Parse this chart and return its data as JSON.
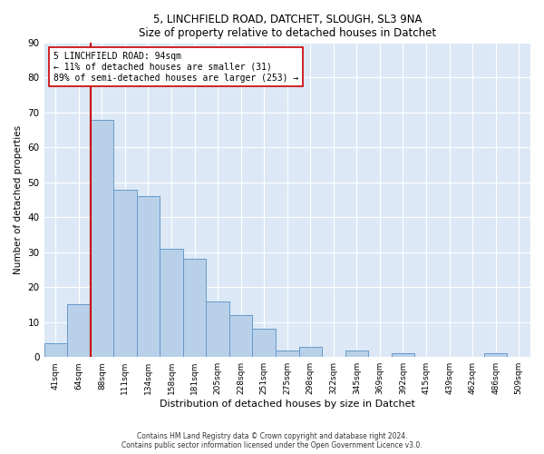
{
  "title1": "5, LINCHFIELD ROAD, DATCHET, SLOUGH, SL3 9NA",
  "title2": "Size of property relative to detached houses in Datchet",
  "xlabel": "Distribution of detached houses by size in Datchet",
  "ylabel": "Number of detached properties",
  "categories": [
    "41sqm",
    "64sqm",
    "88sqm",
    "111sqm",
    "134sqm",
    "158sqm",
    "181sqm",
    "205sqm",
    "228sqm",
    "251sqm",
    "275sqm",
    "298sqm",
    "322sqm",
    "345sqm",
    "369sqm",
    "392sqm",
    "415sqm",
    "439sqm",
    "462sqm",
    "486sqm",
    "509sqm"
  ],
  "values": [
    4,
    15,
    68,
    48,
    46,
    31,
    28,
    16,
    12,
    8,
    2,
    3,
    0,
    2,
    0,
    1,
    0,
    0,
    0,
    1,
    0
  ],
  "bar_color": "#b8d0e8",
  "bar_edge_color": "#6699cc",
  "vline_color": "#cc0000",
  "vline_bin_index": 2,
  "annotation_text": "5 LINCHFIELD ROAD: 94sqm\n← 11% of detached houses are smaller (31)\n89% of semi-detached houses are larger (253) →",
  "annotation_box_color": "#ffffff",
  "annotation_box_edge": "#cc0000",
  "ylim": [
    0,
    90
  ],
  "yticks": [
    0,
    10,
    20,
    30,
    40,
    50,
    60,
    70,
    80,
    90
  ],
  "background_color": "#ffffff",
  "axes_background": "#dce8f5",
  "grid_color": "#ffffff",
  "footer1": "Contains HM Land Registry data © Crown copyright and database right 2024.",
  "footer2": "Contains public sector information licensed under the Open Government Licence v3.0."
}
